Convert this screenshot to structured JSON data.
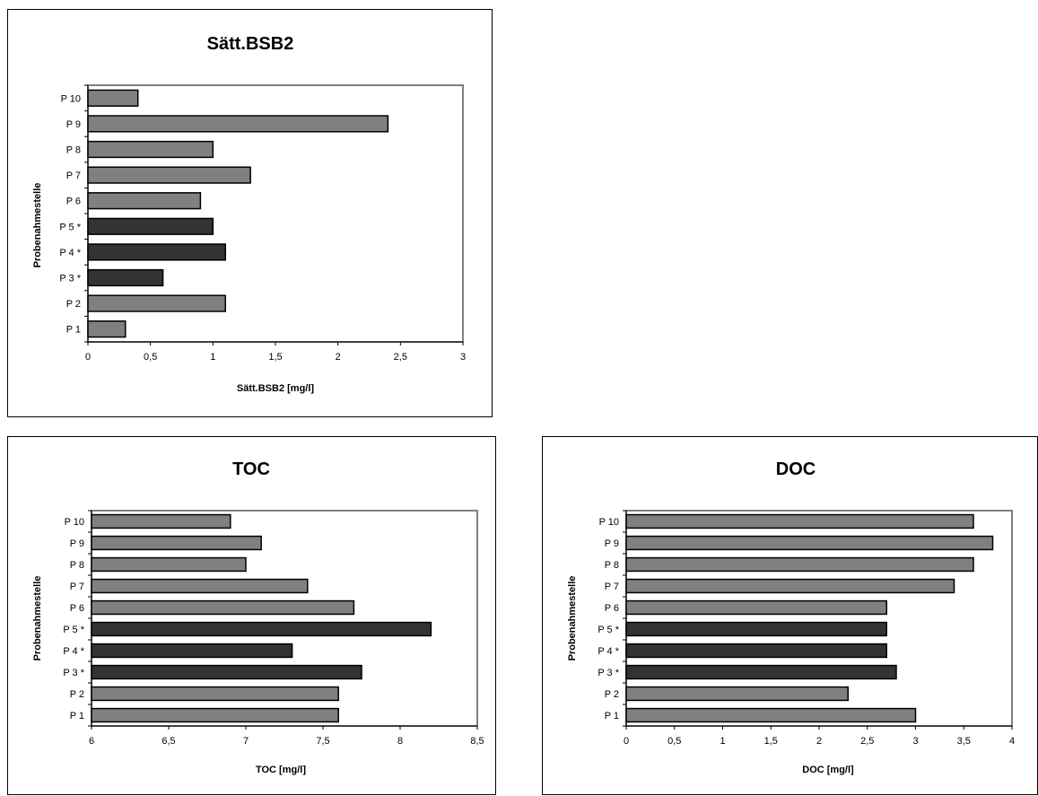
{
  "colors": {
    "normal": "#808080",
    "marked": "#333333",
    "frame": "#808080"
  },
  "chart_data": [
    {
      "id": "bsb2",
      "type": "bar",
      "orientation": "horizontal",
      "title": "Sätt.BSB2",
      "xlabel": "Sätt.BSB2 [mg/l]",
      "ylabel": "Probenahmestelle",
      "categories": [
        "P 1",
        "P 2",
        "P 3 *",
        "P 4 *",
        "P 5 *",
        "P 6",
        "P 7",
        "P 8",
        "P 9",
        "P 10"
      ],
      "values": [
        0.3,
        1.1,
        0.6,
        1.1,
        1.0,
        0.9,
        1.3,
        1.0,
        2.4,
        0.4
      ],
      "marked": [
        false,
        false,
        true,
        true,
        true,
        false,
        false,
        false,
        false,
        false
      ],
      "xlim": [
        0,
        3
      ],
      "ticks": [
        "0",
        "0,5",
        "1",
        "1,5",
        "2",
        "2,5",
        "3"
      ],
      "grid": false,
      "legend": "none"
    },
    {
      "id": "toc",
      "type": "bar",
      "orientation": "horizontal",
      "title": "TOC",
      "xlabel": "TOC [mg/l]",
      "ylabel": "Probenahmestelle",
      "categories": [
        "P 1",
        "P 2",
        "P 3 *",
        "P 4 *",
        "P 5 *",
        "P 6",
        "P 7",
        "P 8",
        "P 9",
        "P 10"
      ],
      "values": [
        7.6,
        7.6,
        7.75,
        7.3,
        8.2,
        7.7,
        7.4,
        7.0,
        7.1,
        6.9
      ],
      "marked": [
        false,
        false,
        true,
        true,
        true,
        false,
        false,
        false,
        false,
        false
      ],
      "xlim": [
        6,
        8.5
      ],
      "ticks": [
        "6",
        "6,5",
        "7",
        "7,5",
        "8",
        "8,5"
      ],
      "grid": false,
      "legend": "none"
    },
    {
      "id": "doc",
      "type": "bar",
      "orientation": "horizontal",
      "title": "DOC",
      "xlabel": "DOC [mg/l]",
      "ylabel": "Probenahmestelle",
      "categories": [
        "P 1",
        "P 2",
        "P 3 *",
        "P 4 *",
        "P 5 *",
        "P 6",
        "P 7",
        "P 8",
        "P 9",
        "P 10"
      ],
      "values": [
        3.0,
        2.3,
        2.8,
        2.7,
        2.7,
        2.7,
        3.4,
        3.6,
        3.8,
        3.6
      ],
      "marked": [
        false,
        false,
        true,
        true,
        true,
        false,
        false,
        false,
        false,
        false
      ],
      "xlim": [
        0,
        4
      ],
      "ticks": [
        "0",
        "0,5",
        "1",
        "1,5",
        "2",
        "2,5",
        "3",
        "3,5",
        "4"
      ],
      "grid": false,
      "legend": "none"
    }
  ]
}
